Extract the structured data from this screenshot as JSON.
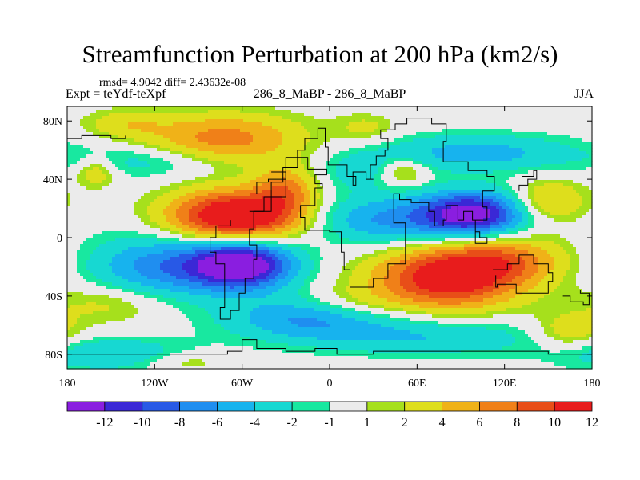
{
  "chart_data": {
    "type": "heatmap",
    "title": "Streamfunction Perturbation at 200 hPa (km2/s)",
    "stats": "rmsd= 4.9042 diff= 2.43632e-08",
    "experiment": "Expt = teYdf-teXpf",
    "center_label": "286_8_MaBP - 286_8_MaBP",
    "season": "JJA",
    "xlim": [
      -180,
      180
    ],
    "ylim": [
      -90,
      90
    ],
    "x_ticks": [
      {
        "value": -180,
        "label": "180"
      },
      {
        "value": -120,
        "label": "120W"
      },
      {
        "value": -60,
        "label": "60W"
      },
      {
        "value": 0,
        "label": "0"
      },
      {
        "value": 60,
        "label": "60E"
      },
      {
        "value": 120,
        "label": "120E"
      },
      {
        "value": 180,
        "label": "180"
      }
    ],
    "y_ticks": [
      {
        "value": 80,
        "label": "80N"
      },
      {
        "value": 40,
        "label": "40N"
      },
      {
        "value": 0,
        "label": "0"
      },
      {
        "value": -40,
        "label": "40S"
      },
      {
        "value": -80,
        "label": "80S"
      }
    ],
    "colorbar": {
      "levels": [
        "-12",
        "-10",
        "-8",
        "-6",
        "-4",
        "-2",
        "-1",
        "1",
        "2",
        "4",
        "6",
        "8",
        "10",
        "12"
      ],
      "colors": [
        "#8a1ee0",
        "#3a28d6",
        "#2859e6",
        "#1f8ef0",
        "#17b3ee",
        "#17d8d2",
        "#18e8a0",
        "#ebebeb",
        "#a6e01c",
        "#dede1c",
        "#f0b218",
        "#f08018",
        "#e84e18",
        "#e81c1c"
      ]
    },
    "centers": [
      {
        "lon": -65,
        "lat": 14,
        "amp": 14.5,
        "sx": 32,
        "sy": 13
      },
      {
        "lon": -30,
        "lat": 33,
        "amp": 6,
        "sx": 15,
        "sy": 12
      },
      {
        "lon": -72,
        "lat": 68,
        "amp": 7,
        "sx": 38,
        "sy": 12
      },
      {
        "lon": -160,
        "lat": 45,
        "amp": 4,
        "sx": 10,
        "sy": 7
      },
      {
        "lon": -140,
        "lat": 78,
        "amp": 3,
        "sx": 20,
        "sy": 7
      },
      {
        "lon": 80,
        "lat": -28,
        "amp": 12,
        "sx": 35,
        "sy": 15
      },
      {
        "lon": 120,
        "lat": -15,
        "amp": 6,
        "sx": 30,
        "sy": 12
      },
      {
        "lon": 150,
        "lat": 25,
        "amp": 5,
        "sx": 18,
        "sy": 10
      },
      {
        "lon": 165,
        "lat": -65,
        "amp": 4,
        "sx": 18,
        "sy": 9
      },
      {
        "lon": 50,
        "lat": 45,
        "amp": 4,
        "sx": 12,
        "sy": 7
      },
      {
        "lon": 15,
        "lat": -45,
        "amp": 2.5,
        "sx": 25,
        "sy": 8
      },
      {
        "lon": 25,
        "lat": 75,
        "amp": 2.5,
        "sx": 15,
        "sy": 7
      },
      {
        "lon": -150,
        "lat": -45,
        "amp": 3,
        "sx": 30,
        "sy": 10
      },
      {
        "lon": -60,
        "lat": -18,
        "amp": -15,
        "sx": 25,
        "sy": 12
      },
      {
        "lon": -115,
        "lat": -20,
        "amp": -7,
        "sx": 35,
        "sy": 16
      },
      {
        "lon": 98,
        "lat": 16,
        "amp": -13.5,
        "sx": 26,
        "sy": 11
      },
      {
        "lon": 35,
        "lat": 12,
        "amp": -6,
        "sx": 35,
        "sy": 12
      },
      {
        "lon": 100,
        "lat": 58,
        "amp": -5,
        "sx": 50,
        "sy": 9
      },
      {
        "lon": 20,
        "lat": 45,
        "amp": -3,
        "sx": 20,
        "sy": 9
      },
      {
        "lon": -125,
        "lat": 52,
        "amp": -3,
        "sx": 35,
        "sy": 8
      },
      {
        "lon": -15,
        "lat": -55,
        "amp": -6,
        "sx": 40,
        "sy": 10
      },
      {
        "lon": 65,
        "lat": -68,
        "amp": -4,
        "sx": 60,
        "sy": 9
      },
      {
        "lon": -150,
        "lat": -80,
        "amp": -4,
        "sx": 40,
        "sy": 8
      },
      {
        "lon": -100,
        "lat": -85,
        "amp": 2.5,
        "sx": 20,
        "sy": 5
      }
    ],
    "land_outlines": [
      [
        [
          -180,
          -80
        ],
        [
          -150,
          -80
        ],
        [
          -120,
          -80
        ],
        [
          -95,
          -80
        ],
        [
          -80,
          -80
        ],
        [
          -70,
          -78
        ],
        [
          -60,
          -70
        ],
        [
          -50,
          -76
        ],
        [
          -30,
          -78
        ],
        [
          -10,
          -76
        ],
        [
          5,
          -80
        ],
        [
          30,
          -78
        ],
        [
          60,
          -78
        ],
        [
          90,
          -78
        ],
        [
          120,
          -78
        ],
        [
          150,
          -80
        ],
        [
          180,
          -80
        ]
      ],
      [
        [
          -55,
          18
        ],
        [
          -45,
          28
        ],
        [
          -40,
          38
        ],
        [
          -32,
          48
        ],
        [
          -22,
          60
        ],
        [
          -17,
          68
        ],
        [
          -8,
          75
        ],
        [
          -3,
          62
        ],
        [
          -1,
          50
        ],
        [
          12,
          42
        ],
        [
          18,
          36
        ],
        [
          16,
          45
        ],
        [
          25,
          40
        ],
        [
          30,
          40
        ],
        [
          28,
          50
        ],
        [
          32,
          56
        ],
        [
          38,
          60
        ],
        [
          40,
          68
        ],
        [
          35,
          74
        ],
        [
          45,
          78
        ],
        [
          53,
          82
        ],
        [
          70,
          78
        ],
        [
          80,
          66
        ],
        [
          78,
          52
        ],
        [
          95,
          46
        ],
        [
          108,
          42
        ],
        [
          113,
          32
        ],
        [
          105,
          21
        ],
        [
          108,
          12
        ],
        [
          100,
          4
        ],
        [
          103,
          0
        ],
        [
          108,
          -4
        ],
        [
          100,
          12
        ],
        [
          98,
          18
        ],
        [
          92,
          12
        ],
        [
          88,
          22
        ],
        [
          80,
          12
        ],
        [
          78,
          8
        ],
        [
          72,
          18
        ],
        [
          68,
          24
        ],
        [
          56,
          26
        ],
        [
          48,
          30
        ],
        [
          44,
          18
        ],
        [
          44,
          10
        ],
        [
          50,
          10
        ],
        [
          52,
          -18
        ],
        [
          40,
          -28
        ],
        [
          30,
          -34
        ],
        [
          20,
          -34
        ],
        [
          14,
          -22
        ],
        [
          10,
          -10
        ],
        [
          8,
          4
        ],
        [
          0,
          5
        ],
        [
          -17,
          14
        ],
        [
          -20,
          22
        ],
        [
          -10,
          34
        ],
        [
          -5,
          37
        ],
        [
          -10,
          43
        ],
        [
          -2,
          47
        ],
        [
          -15,
          55
        ],
        [
          -30,
          40
        ],
        [
          -42,
          38
        ],
        [
          -50,
          30
        ]
      ],
      [
        [
          -40,
          45
        ],
        [
          -30,
          28
        ],
        [
          -40,
          18
        ],
        [
          -52,
          6
        ],
        [
          -55,
          -5
        ],
        [
          -50,
          -15
        ],
        [
          -52,
          -28
        ],
        [
          -58,
          -38
        ],
        [
          -62,
          -50
        ],
        [
          -68,
          -56
        ],
        [
          -75,
          -48
        ],
        [
          -72,
          -32
        ],
        [
          -72,
          -18
        ],
        [
          -78,
          -10
        ],
        [
          -82,
          0
        ],
        [
          -78,
          8
        ],
        [
          -68,
          12
        ]
      ],
      [
        [
          112,
          -22
        ],
        [
          122,
          -18
        ],
        [
          130,
          -12
        ],
        [
          140,
          -18
        ],
        [
          150,
          -24
        ],
        [
          153,
          -30
        ],
        [
          150,
          -38
        ],
        [
          140,
          -38
        ],
        [
          128,
          -32
        ],
        [
          115,
          -34
        ],
        [
          114,
          -26
        ]
      ],
      [
        [
          160,
          -40
        ],
        [
          165,
          -44
        ],
        [
          174,
          -46
        ],
        [
          178,
          -38
        ],
        [
          172,
          -36
        ]
      ],
      [
        [
          -180,
          68
        ],
        [
          -170,
          70
        ],
        [
          -160,
          70
        ],
        [
          -150,
          68
        ],
        [
          -140,
          70
        ]
      ],
      [
        [
          132,
          42
        ],
        [
          140,
          46
        ],
        [
          142,
          40
        ],
        [
          136,
          36
        ],
        [
          130,
          32
        ]
      ]
    ]
  }
}
